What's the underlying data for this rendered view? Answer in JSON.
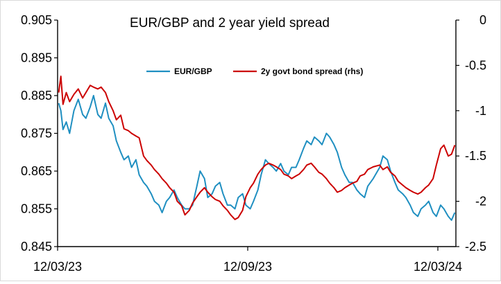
{
  "chart_data": {
    "type": "line",
    "title": "EUR/GBP and 2 year yield spread",
    "x_ticks": [
      "12/03/23",
      "12/09/23",
      "12/03/24"
    ],
    "x_range": [
      "2023-03-12",
      "2024-03-12"
    ],
    "y_left": {
      "ticks": [
        "0.905",
        "0.895",
        "0.885",
        "0.875",
        "0.865",
        "0.855",
        "0.845"
      ],
      "range": [
        0.845,
        0.905
      ]
    },
    "y_right": {
      "ticks": [
        "0",
        "-0.5",
        "-1",
        "-1.5",
        "-2",
        "-2.5"
      ],
      "range": [
        -2.5,
        0
      ]
    },
    "legend_position": "top-center",
    "series": [
      {
        "name": "EUR/GBP",
        "axis": "left",
        "color": "#1f8fc1",
        "points": [
          [
            "2023-03-13",
            0.883
          ],
          [
            "2023-03-15",
            0.881
          ],
          [
            "2023-03-17",
            0.876
          ],
          [
            "2023-03-20",
            0.878
          ],
          [
            "2023-03-23",
            0.875
          ],
          [
            "2023-03-27",
            0.881
          ],
          [
            "2023-03-31",
            0.884
          ],
          [
            "2023-04-04",
            0.88
          ],
          [
            "2023-04-07",
            0.879
          ],
          [
            "2023-04-11",
            0.882
          ],
          [
            "2023-04-14",
            0.885
          ],
          [
            "2023-04-18",
            0.88
          ],
          [
            "2023-04-21",
            0.879
          ],
          [
            "2023-04-25",
            0.883
          ],
          [
            "2023-04-28",
            0.879
          ],
          [
            "2023-05-02",
            0.877
          ],
          [
            "2023-05-05",
            0.873
          ],
          [
            "2023-05-09",
            0.87
          ],
          [
            "2023-05-12",
            0.868
          ],
          [
            "2023-05-16",
            0.869
          ],
          [
            "2023-05-19",
            0.866
          ],
          [
            "2023-05-23",
            0.868
          ],
          [
            "2023-05-26",
            0.864
          ],
          [
            "2023-05-30",
            0.862
          ],
          [
            "2023-06-02",
            0.861
          ],
          [
            "2023-06-06",
            0.859
          ],
          [
            "2023-06-09",
            0.857
          ],
          [
            "2023-06-13",
            0.856
          ],
          [
            "2023-06-16",
            0.854
          ],
          [
            "2023-06-20",
            0.857
          ],
          [
            "2023-06-23",
            0.858
          ],
          [
            "2023-06-27",
            0.86
          ],
          [
            "2023-06-30",
            0.858
          ],
          [
            "2023-07-04",
            0.856
          ],
          [
            "2023-07-07",
            0.855
          ],
          [
            "2023-07-11",
            0.855
          ],
          [
            "2023-07-14",
            0.856
          ],
          [
            "2023-07-18",
            0.861
          ],
          [
            "2023-07-21",
            0.865
          ],
          [
            "2023-07-25",
            0.863
          ],
          [
            "2023-07-28",
            0.858
          ],
          [
            "2023-08-01",
            0.859
          ],
          [
            "2023-08-04",
            0.861
          ],
          [
            "2023-08-08",
            0.862
          ],
          [
            "2023-08-11",
            0.859
          ],
          [
            "2023-08-15",
            0.856
          ],
          [
            "2023-08-18",
            0.856
          ],
          [
            "2023-08-22",
            0.855
          ],
          [
            "2023-08-25",
            0.858
          ],
          [
            "2023-08-29",
            0.859
          ],
          [
            "2023-09-01",
            0.856
          ],
          [
            "2023-09-05",
            0.855
          ],
          [
            "2023-09-08",
            0.857
          ],
          [
            "2023-09-12",
            0.86
          ],
          [
            "2023-09-15",
            0.864
          ],
          [
            "2023-09-19",
            0.868
          ],
          [
            "2023-09-22",
            0.867
          ],
          [
            "2023-09-26",
            0.866
          ],
          [
            "2023-09-29",
            0.865
          ],
          [
            "2023-10-03",
            0.867
          ],
          [
            "2023-10-06",
            0.865
          ],
          [
            "2023-10-10",
            0.864
          ],
          [
            "2023-10-13",
            0.866
          ],
          [
            "2023-10-17",
            0.866
          ],
          [
            "2023-10-20",
            0.868
          ],
          [
            "2023-10-24",
            0.871
          ],
          [
            "2023-10-27",
            0.873
          ],
          [
            "2023-10-31",
            0.872
          ],
          [
            "2023-11-03",
            0.874
          ],
          [
            "2023-11-07",
            0.873
          ],
          [
            "2023-11-10",
            0.872
          ],
          [
            "2023-11-14",
            0.875
          ],
          [
            "2023-11-17",
            0.874
          ],
          [
            "2023-11-21",
            0.872
          ],
          [
            "2023-11-24",
            0.87
          ],
          [
            "2023-11-28",
            0.866
          ],
          [
            "2023-12-01",
            0.864
          ],
          [
            "2023-12-05",
            0.862
          ],
          [
            "2023-12-08",
            0.862
          ],
          [
            "2023-12-12",
            0.86
          ],
          [
            "2023-12-15",
            0.859
          ],
          [
            "2023-12-19",
            0.858
          ],
          [
            "2023-12-22",
            0.861
          ],
          [
            "2023-12-27",
            0.863
          ],
          [
            "2024-01-02",
            0.866
          ],
          [
            "2024-01-05",
            0.869
          ],
          [
            "2024-01-09",
            0.868
          ],
          [
            "2024-01-12",
            0.865
          ],
          [
            "2024-01-16",
            0.862
          ],
          [
            "2024-01-19",
            0.86
          ],
          [
            "2024-01-23",
            0.859
          ],
          [
            "2024-01-26",
            0.858
          ],
          [
            "2024-01-30",
            0.856
          ],
          [
            "2024-02-02",
            0.854
          ],
          [
            "2024-02-06",
            0.853
          ],
          [
            "2024-02-09",
            0.855
          ],
          [
            "2024-02-13",
            0.856
          ],
          [
            "2024-02-16",
            0.857
          ],
          [
            "2024-02-20",
            0.854
          ],
          [
            "2024-02-23",
            0.853
          ],
          [
            "2024-02-27",
            0.856
          ],
          [
            "2024-03-01",
            0.855
          ],
          [
            "2024-03-05",
            0.853
          ],
          [
            "2024-03-08",
            0.852
          ],
          [
            "2024-03-11",
            0.854
          ]
        ]
      },
      {
        "name": "2y govt bond spread (rhs)",
        "axis": "right",
        "color": "#cc0000",
        "points": [
          [
            "2023-03-13",
            -0.8
          ],
          [
            "2023-03-15",
            -0.62
          ],
          [
            "2023-03-17",
            -0.93
          ],
          [
            "2023-03-20",
            -0.8
          ],
          [
            "2023-03-23",
            -0.9
          ],
          [
            "2023-03-27",
            -0.82
          ],
          [
            "2023-03-31",
            -0.76
          ],
          [
            "2023-04-04",
            -0.86
          ],
          [
            "2023-04-07",
            -0.8
          ],
          [
            "2023-04-11",
            -0.72
          ],
          [
            "2023-04-14",
            -0.74
          ],
          [
            "2023-04-18",
            -0.76
          ],
          [
            "2023-04-21",
            -0.74
          ],
          [
            "2023-04-25",
            -0.8
          ],
          [
            "2023-04-28",
            -0.9
          ],
          [
            "2023-05-02",
            -1.0
          ],
          [
            "2023-05-05",
            -1.1
          ],
          [
            "2023-05-09",
            -1.05
          ],
          [
            "2023-05-12",
            -1.2
          ],
          [
            "2023-05-16",
            -1.22
          ],
          [
            "2023-05-19",
            -1.25
          ],
          [
            "2023-05-23",
            -1.28
          ],
          [
            "2023-05-26",
            -1.3
          ],
          [
            "2023-05-30",
            -1.5
          ],
          [
            "2023-06-02",
            -1.55
          ],
          [
            "2023-06-06",
            -1.6
          ],
          [
            "2023-06-09",
            -1.65
          ],
          [
            "2023-06-13",
            -1.7
          ],
          [
            "2023-06-16",
            -1.75
          ],
          [
            "2023-06-20",
            -1.8
          ],
          [
            "2023-06-23",
            -1.85
          ],
          [
            "2023-06-27",
            -1.9
          ],
          [
            "2023-06-30",
            -2.0
          ],
          [
            "2023-07-04",
            -2.05
          ],
          [
            "2023-07-07",
            -2.15
          ],
          [
            "2023-07-11",
            -2.1
          ],
          [
            "2023-07-14",
            -2.02
          ],
          [
            "2023-07-18",
            -1.95
          ],
          [
            "2023-07-21",
            -1.9
          ],
          [
            "2023-07-25",
            -1.85
          ],
          [
            "2023-07-28",
            -1.9
          ],
          [
            "2023-08-01",
            -1.95
          ],
          [
            "2023-08-04",
            -1.98
          ],
          [
            "2023-08-08",
            -2.0
          ],
          [
            "2023-08-11",
            -2.05
          ],
          [
            "2023-08-15",
            -2.1
          ],
          [
            "2023-08-18",
            -2.15
          ],
          [
            "2023-08-22",
            -2.2
          ],
          [
            "2023-08-25",
            -2.18
          ],
          [
            "2023-08-29",
            -2.1
          ],
          [
            "2023-09-01",
            -1.95
          ],
          [
            "2023-09-05",
            -1.85
          ],
          [
            "2023-09-08",
            -1.8
          ],
          [
            "2023-09-12",
            -1.7
          ],
          [
            "2023-09-15",
            -1.65
          ],
          [
            "2023-09-19",
            -1.6
          ],
          [
            "2023-09-22",
            -1.58
          ],
          [
            "2023-09-26",
            -1.6
          ],
          [
            "2023-09-29",
            -1.62
          ],
          [
            "2023-10-03",
            -1.65
          ],
          [
            "2023-10-06",
            -1.7
          ],
          [
            "2023-10-10",
            -1.72
          ],
          [
            "2023-10-13",
            -1.75
          ],
          [
            "2023-10-17",
            -1.72
          ],
          [
            "2023-10-20",
            -1.7
          ],
          [
            "2023-10-24",
            -1.65
          ],
          [
            "2023-10-27",
            -1.6
          ],
          [
            "2023-10-31",
            -1.58
          ],
          [
            "2023-11-03",
            -1.62
          ],
          [
            "2023-11-07",
            -1.68
          ],
          [
            "2023-11-10",
            -1.7
          ],
          [
            "2023-11-14",
            -1.75
          ],
          [
            "2023-11-17",
            -1.8
          ],
          [
            "2023-11-21",
            -1.85
          ],
          [
            "2023-11-24",
            -1.9
          ],
          [
            "2023-11-28",
            -1.88
          ],
          [
            "2023-12-01",
            -1.85
          ],
          [
            "2023-12-05",
            -1.82
          ],
          [
            "2023-12-08",
            -1.8
          ],
          [
            "2023-12-12",
            -1.78
          ],
          [
            "2023-12-15",
            -1.72
          ],
          [
            "2023-12-19",
            -1.7
          ],
          [
            "2023-12-22",
            -1.65
          ],
          [
            "2023-12-27",
            -1.62
          ],
          [
            "2024-01-02",
            -1.6
          ],
          [
            "2024-01-05",
            -1.65
          ],
          [
            "2024-01-09",
            -1.62
          ],
          [
            "2024-01-12",
            -1.68
          ],
          [
            "2024-01-16",
            -1.72
          ],
          [
            "2024-01-19",
            -1.78
          ],
          [
            "2024-01-23",
            -1.82
          ],
          [
            "2024-01-26",
            -1.85
          ],
          [
            "2024-01-30",
            -1.88
          ],
          [
            "2024-02-02",
            -1.9
          ],
          [
            "2024-02-06",
            -1.92
          ],
          [
            "2024-02-09",
            -1.9
          ],
          [
            "2024-02-13",
            -1.85
          ],
          [
            "2024-02-16",
            -1.82
          ],
          [
            "2024-02-20",
            -1.75
          ],
          [
            "2024-02-23",
            -1.6
          ],
          [
            "2024-02-27",
            -1.42
          ],
          [
            "2024-03-01",
            -1.38
          ],
          [
            "2024-03-05",
            -1.5
          ],
          [
            "2024-03-08",
            -1.48
          ],
          [
            "2024-03-11",
            -1.38
          ]
        ]
      }
    ]
  }
}
